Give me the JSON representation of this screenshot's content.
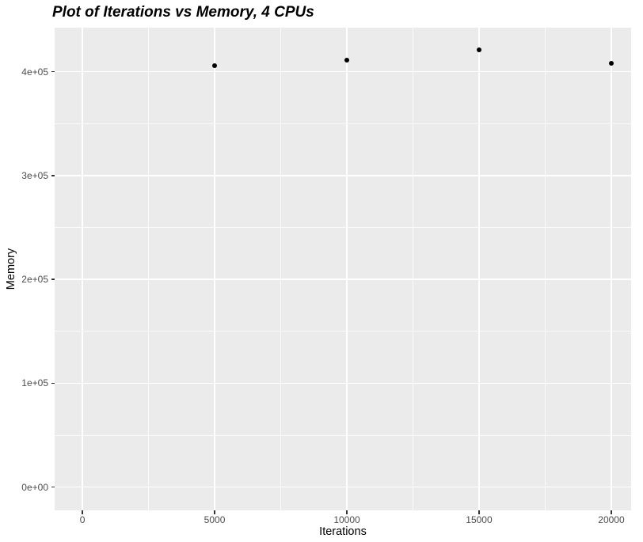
{
  "header": {
    "title": "Plot of Iterations vs Memory, 4 CPUs"
  },
  "chart_data": {
    "type": "scatter",
    "title": "Plot of Iterations vs Memory, 4 CPUs",
    "xlabel": "Iterations",
    "ylabel": "Memory",
    "points": [
      {
        "x": 5000,
        "y": 406000
      },
      {
        "x": 10000,
        "y": 411000
      },
      {
        "x": 15000,
        "y": 421000
      },
      {
        "x": 20000,
        "y": 408000
      }
    ],
    "xlim": [
      -1050,
      20750
    ],
    "ylim": [
      -22300,
      442400
    ],
    "x_ticks": [
      {
        "value": 0,
        "label": "0"
      },
      {
        "value": 5000,
        "label": "5000"
      },
      {
        "value": 10000,
        "label": "10000"
      },
      {
        "value": 15000,
        "label": "15000"
      },
      {
        "value": 20000,
        "label": "20000"
      }
    ],
    "y_ticks": [
      {
        "value": 0,
        "label": "0e+00"
      },
      {
        "value": 100000,
        "label": "1e+05"
      },
      {
        "value": 200000,
        "label": "2e+05"
      },
      {
        "value": 300000,
        "label": "3e+05"
      },
      {
        "value": 400000,
        "label": "4e+05"
      }
    ],
    "x_minor_gridlines": [
      2500,
      7500,
      12500,
      17500
    ],
    "y_minor_gridlines": [
      50000,
      150000,
      250000,
      350000
    ],
    "grid": true,
    "legend_position": "none",
    "colors": {
      "panel_background": "#EBEBEB",
      "gridline": "#FFFFFF",
      "point": "#000000",
      "axis_text": "#4D4D4D",
      "tick_mark": "#333333",
      "title_text": "#000000"
    }
  }
}
